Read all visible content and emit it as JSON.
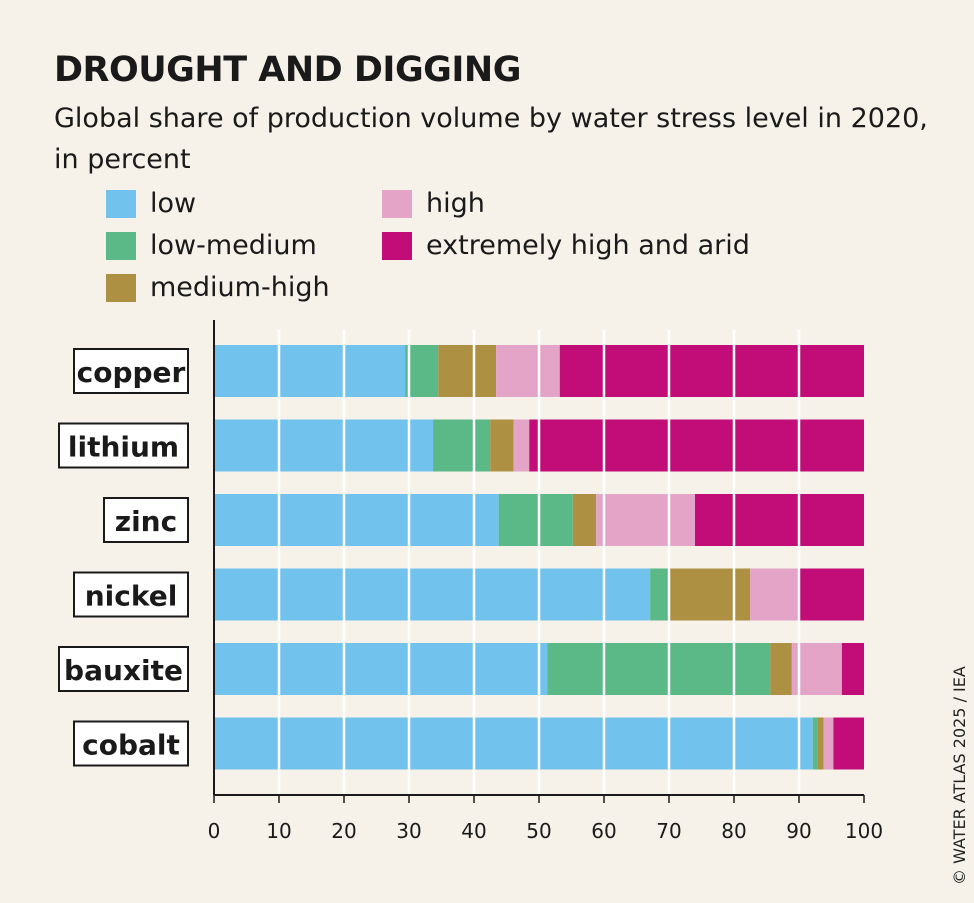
{
  "chart_data": {
    "type": "bar",
    "orientation": "horizontal",
    "stacked": true,
    "title": "DROUGHT AND DIGGING",
    "subtitle": "Global share of production volume by water stress level in 2020, in percent",
    "categories": [
      "copper",
      "lithium",
      "zinc",
      "nickel",
      "bauxite",
      "cobalt"
    ],
    "series": [
      {
        "name": "low",
        "color": "#72c2ee",
        "values": [
          29.4,
          33.7,
          43.8,
          67.1,
          51.3,
          92.1
        ]
      },
      {
        "name": "low-medium",
        "color": "#5bb887",
        "values": [
          5.1,
          8.8,
          11.4,
          2.8,
          34.3,
          0.7
        ]
      },
      {
        "name": "medium-high",
        "color": "#ae9042",
        "values": [
          8.9,
          3.6,
          3.6,
          12.6,
          3.3,
          1.0
        ]
      },
      {
        "name": "high",
        "color": "#e3a4c8",
        "values": [
          9.8,
          2.4,
          15.2,
          7.5,
          7.7,
          1.5
        ]
      },
      {
        "name": "extremely high and arid",
        "color": "#c20c78",
        "values": [
          46.8,
          51.5,
          26.0,
          10.0,
          3.4,
          4.7
        ]
      }
    ],
    "xlim": [
      0,
      100
    ],
    "xticks": [
      "0",
      "10",
      "20",
      "30",
      "40",
      "50",
      "60",
      "70",
      "80",
      "90",
      "100"
    ],
    "grid": true,
    "legend_position": "top-left"
  },
  "credit": "© WATER ATLAS 2025 / IEA"
}
